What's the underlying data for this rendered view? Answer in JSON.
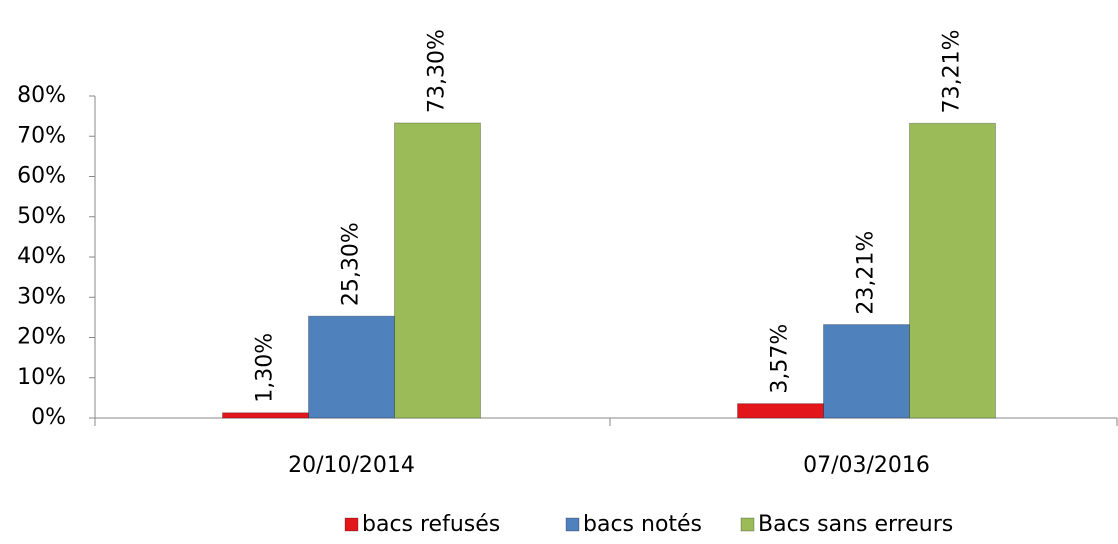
{
  "chart_data": {
    "type": "bar",
    "categories": [
      "20/10/2014",
      "07/03/2016"
    ],
    "series": [
      {
        "name": "bacs refusés",
        "color": "#e3161b",
        "values": [
          1.3,
          3.57
        ],
        "value_labels": [
          "1,30%",
          "3,57%"
        ]
      },
      {
        "name": "bacs notés",
        "color": "#4f81bd",
        "values": [
          25.3,
          23.21
        ],
        "value_labels": [
          "25,30%",
          "23,21%"
        ]
      },
      {
        "name": "Bacs sans erreurs",
        "color": "#9bbb59",
        "values": [
          73.3,
          73.21
        ],
        "value_labels": [
          "73,30%",
          "73,21%"
        ]
      }
    ],
    "ylim": [
      0,
      80
    ],
    "yticks": [
      {
        "value": 0,
        "label": "0%"
      },
      {
        "value": 10,
        "label": "10%"
      },
      {
        "value": 20,
        "label": "20%"
      },
      {
        "value": 30,
        "label": "30%"
      },
      {
        "value": 40,
        "label": "40%"
      },
      {
        "value": 50,
        "label": "50%"
      },
      {
        "value": 60,
        "label": "60%"
      },
      {
        "value": 70,
        "label": "70%"
      },
      {
        "value": 80,
        "label": "80%"
      }
    ],
    "legend": "bottom"
  }
}
